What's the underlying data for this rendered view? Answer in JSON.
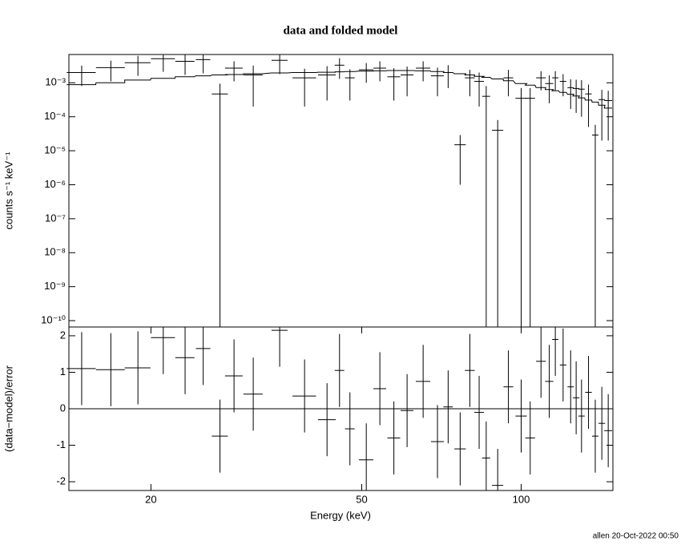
{
  "chart_data": [
    {
      "type": "errorbar",
      "title": "data and folded model",
      "y_label": "counts s⁻¹ keV⁻¹",
      "log_x": true,
      "log_y": true,
      "xlim": [
        14,
        149
      ],
      "ylim": [
        6.5e-11,
        0.0068
      ],
      "yticks": [
        {
          "value": 1e-10,
          "label": "10⁻¹⁰"
        },
        {
          "value": 1e-09,
          "label": "10⁻⁹"
        },
        {
          "value": 1e-08,
          "label": "10⁻⁸"
        },
        {
          "value": 1e-07,
          "label": "10⁻⁷"
        },
        {
          "value": 1e-06,
          "label": "10⁻⁶"
        },
        {
          "value": 1e-05,
          "label": "10⁻⁵"
        },
        {
          "value": 0.0001,
          "label": "10⁻⁴"
        },
        {
          "value": 0.001,
          "label": "10⁻³"
        }
      ],
      "color": "#000000",
      "model_color": "#000000",
      "x": [
        14.8,
        16.8,
        18.9,
        21.1,
        23.2,
        25.1,
        27.0,
        28.7,
        31.2,
        35.0,
        39.0,
        43.0,
        45.4,
        47.5,
        51.0,
        54.1,
        57.5,
        60.9,
        65.3,
        69.5,
        72.8,
        76.7,
        80.0,
        83.3,
        85.9,
        90.3,
        94.6,
        100,
        104,
        109,
        113,
        116,
        120,
        124,
        127,
        130,
        134,
        138,
        142,
        146
      ],
      "x_err": [
        0.93,
        1.05,
        1.06,
        1.1,
        0.97,
        0.79,
        0.94,
        1.1,
        1.3,
        1.22,
        2.0,
        1.65,
        0.95,
        1.0,
        1.6,
        1.5,
        1.6,
        1.7,
        2.05,
        1.95,
        1.5,
        1.9,
        1.7,
        1.75,
        1.5,
        2.2,
        2.0,
        2.45,
        2.2,
        2.3,
        2.0,
        1.6,
        1.7,
        1.7,
        1.8,
        1.8,
        1.9,
        1.9,
        2.0,
        2.5
      ],
      "values": [
        0.002,
        0.0028,
        0.0039,
        0.0051,
        0.0043,
        0.0048,
        0.00047,
        0.0027,
        0.0017,
        0.0046,
        0.0014,
        0.0017,
        0.0033,
        0.0014,
        0.0024,
        0.0027,
        0.0015,
        0.0017,
        0.0027,
        0.0016,
        0.002,
        1.5e-05,
        0.0014,
        0.0011,
        0.0004,
        4e-05,
        0.0014,
        0.00035,
        0.00035,
        0.0014,
        0.00095,
        0.0014,
        0.0011,
        0.00072,
        0.00068,
        0.00065,
        0.00047,
        2.9e-05,
        0.00032,
        0.0003
      ],
      "errors": [
        0.0012,
        0.0017,
        0.0023,
        0.003,
        0.0026,
        0.0029,
        0.00047,
        0.0016,
        0.0015,
        0.0028,
        0.0012,
        0.0014,
        0.002,
        0.0011,
        0.0014,
        0.0016,
        0.0012,
        0.0013,
        0.0016,
        0.0012,
        0.0013,
        1.4e-05,
        0.001,
        0.0009,
        0.0004,
        4e-05,
        0.001,
        0.00035,
        0.00035,
        0.0008,
        0.0007,
        0.0008,
        0.0007,
        0.00055,
        0.00055,
        0.00055,
        0.00042,
        2.9e-05,
        0.0003,
        0.00028
      ],
      "model": [
        0.00088,
        0.001,
        0.0012,
        0.00135,
        0.0015,
        0.0016,
        0.0017,
        0.00175,
        0.00185,
        0.00195,
        0.002,
        0.00205,
        0.0021,
        0.00215,
        0.0022,
        0.00225,
        0.0023,
        0.0023,
        0.00225,
        0.00215,
        0.002,
        0.00185,
        0.0017,
        0.00155,
        0.00145,
        0.0013,
        0.00115,
        0.00095,
        0.00085,
        0.00072,
        0.00063,
        0.00058,
        0.00052,
        0.00046,
        0.00041,
        0.00036,
        0.00031,
        0.00027,
        0.00022,
        0.00018
      ]
    },
    {
      "type": "residual",
      "y_label": "(data−model)/error",
      "x_label": "Energy (keV)",
      "log_x": true,
      "xlim": [
        14,
        149
      ],
      "xticks": [
        20,
        50,
        100
      ],
      "ylim": [
        -2.24,
        2.24
      ],
      "yticks": [
        -2,
        -1,
        0,
        1,
        2
      ],
      "color": "#000000",
      "reference_line": 0,
      "reference_color": "#22dd22",
      "values": [
        1.1,
        1.07,
        1.12,
        1.95,
        1.4,
        1.65,
        -0.75,
        0.9,
        0.4,
        2.15,
        0.35,
        -0.3,
        1.05,
        -0.55,
        -1.4,
        0.55,
        -0.8,
        -0.05,
        0.75,
        -0.9,
        0.05,
        -1.1,
        1.05,
        -0.1,
        -1.35,
        -2.1,
        0.6,
        -0.2,
        -0.8,
        1.3,
        0.75,
        1.9,
        1.2,
        0.6,
        0.3,
        -0.2,
        0.45,
        -0.75,
        -0.4,
        -0.6
      ],
      "errors": [
        1,
        1,
        1,
        1,
        1,
        1,
        1,
        1,
        1,
        1,
        1,
        1,
        1,
        1,
        1,
        1,
        1,
        1,
        1,
        1,
        1,
        1,
        1,
        1,
        1,
        1,
        1,
        1,
        1,
        1,
        1,
        1,
        1,
        1,
        1,
        1,
        1,
        1,
        1,
        1
      ]
    }
  ],
  "footer": "allen 20-Oct-2022 00:50"
}
